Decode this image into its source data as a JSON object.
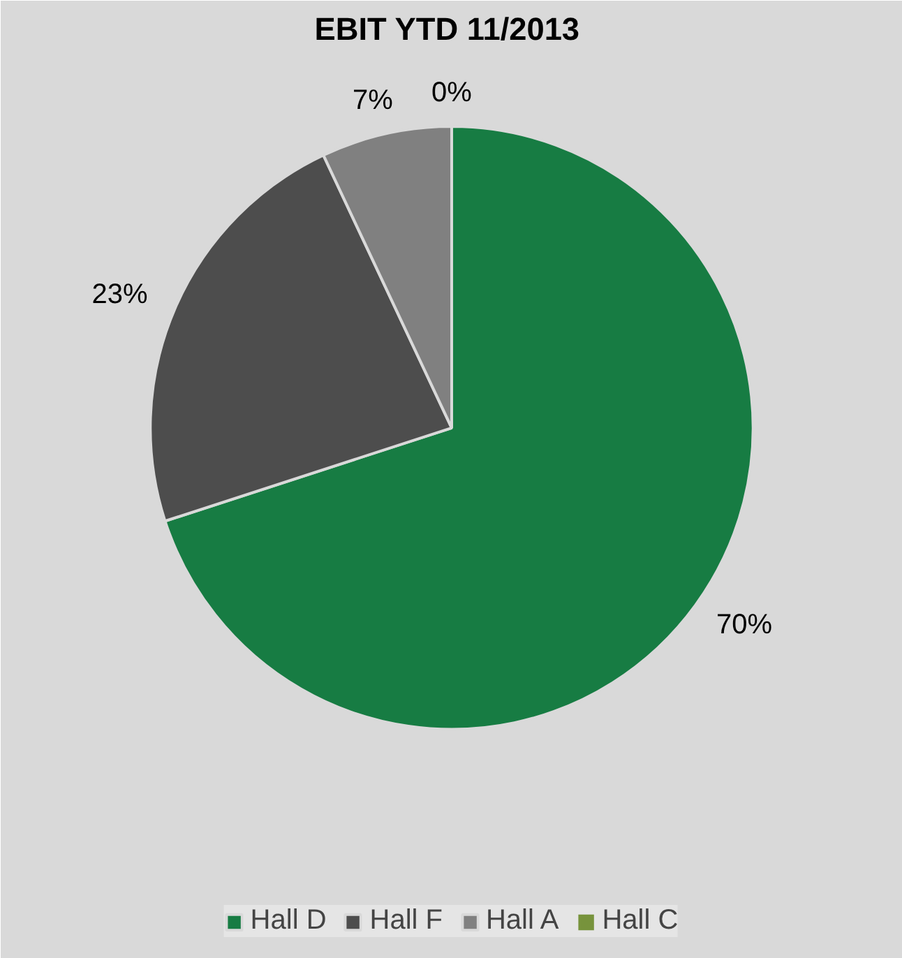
{
  "chart_data": {
    "type": "pie",
    "title": "EBIT  YTD 11/2013",
    "categories": [
      "Hall D",
      "Hall F",
      "Hall A",
      "Hall C"
    ],
    "values": [
      70,
      23,
      7,
      0
    ],
    "value_labels": [
      "70%",
      "23%",
      "7%",
      "0%"
    ],
    "colors": [
      "#177c43",
      "#4d4d4d",
      "#808080",
      "#77933c"
    ],
    "legend": "bottom"
  }
}
